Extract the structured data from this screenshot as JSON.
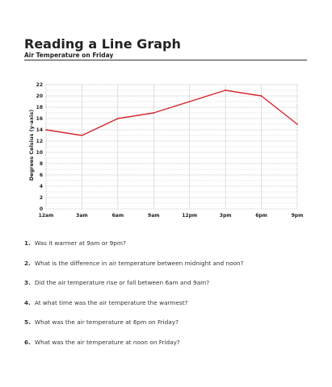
{
  "header": {
    "title": "Reading a Line Graph",
    "subtitle": "Air Temperature on Friday"
  },
  "chart_data": {
    "type": "line",
    "title": "Reading a Line Graph",
    "subtitle": "Air Temperature on Friday",
    "xlabel": "",
    "ylabel": "Degrees Celsius (y-axis)",
    "categories": [
      "12am",
      "3am",
      "6am",
      "9am",
      "12pm",
      "3pm",
      "6pm",
      "9pm"
    ],
    "series": [
      {
        "values": [
          14,
          13,
          16,
          17,
          19,
          21,
          20,
          15
        ],
        "color": "#d7282f"
      }
    ],
    "ylim": [
      0,
      22
    ],
    "yticks": [
      0,
      2,
      4,
      6,
      8,
      10,
      12,
      14,
      16,
      18,
      20,
      22
    ],
    "grid": true,
    "grid_style": "dotted"
  },
  "questions": [
    {
      "num": "1.",
      "text": "Was it warmer at 9am or 9pm?"
    },
    {
      "num": "2.",
      "text": "What is the difference in air temperature between midnight and noon?"
    },
    {
      "num": "3.",
      "text": "Did the air temperature rise or fall  between 6am and 9am?"
    },
    {
      "num": "4.",
      "text": "At what time was the air temperature  the warmest?"
    },
    {
      "num": "5.",
      "text": "What was the air temperature at 6pm on Friday?"
    },
    {
      "num": "6.",
      "text": "What was the air temperature at noon on Friday?"
    }
  ]
}
